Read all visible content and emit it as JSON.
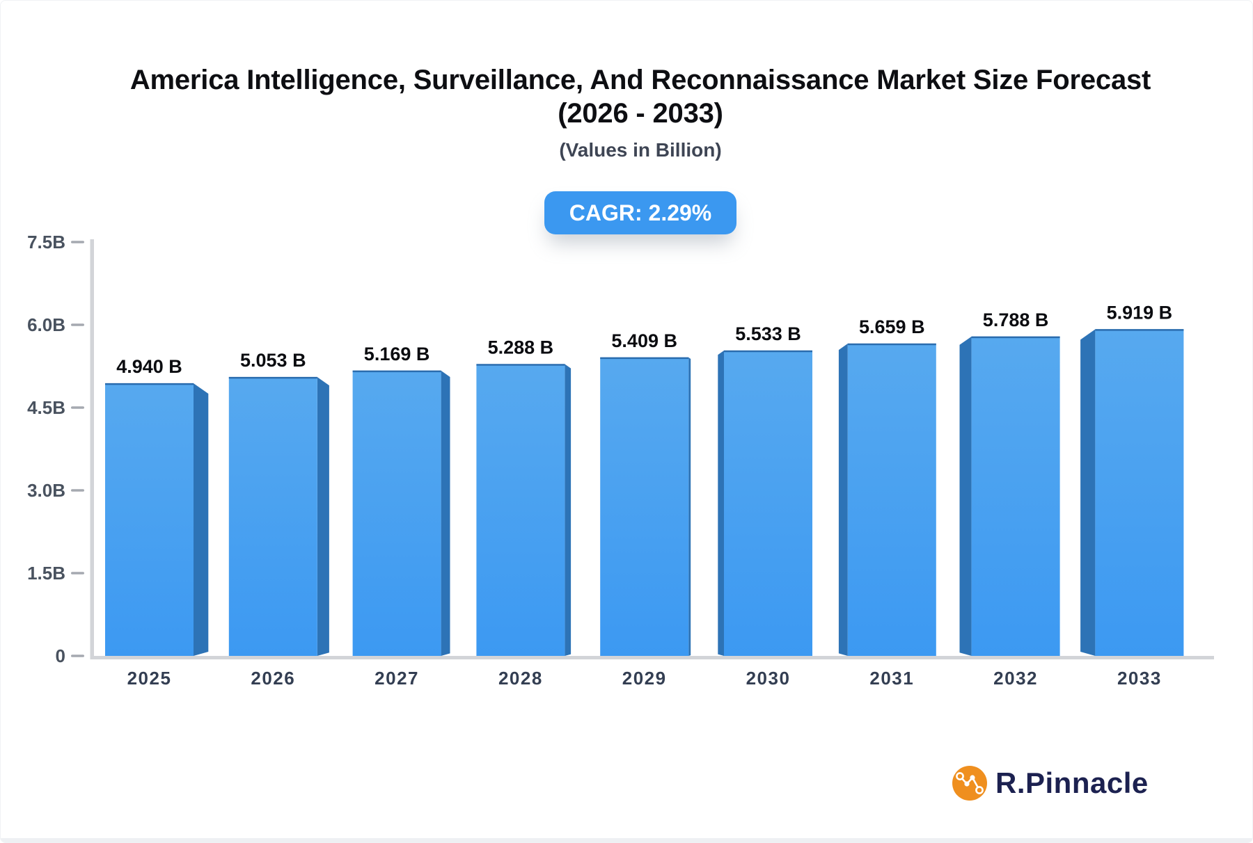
{
  "header": {
    "title_line1": "America Intelligence, Surveillance, And Reconnaissance Market Size Forecast",
    "title_line2": "(2026 - 2033)",
    "subtitle": "(Values in Billion)"
  },
  "badge": {
    "text": "CAGR: 2.29%",
    "bg": "#3b98f0",
    "fg": "#ffffff"
  },
  "chart_data": {
    "type": "bar",
    "title": "America Intelligence, Surveillance, And Reconnaissance Market Size Forecast (2026 - 2033)",
    "subtitle": "Values in Billion",
    "cagr_percent": 2.29,
    "categories": [
      "2025",
      "2026",
      "2027",
      "2028",
      "2029",
      "2030",
      "2031",
      "2032",
      "2033"
    ],
    "values": [
      4.94,
      5.053,
      5.169,
      5.288,
      5.409,
      5.533,
      5.659,
      5.788,
      5.919
    ],
    "value_labels": [
      "4.940 B",
      "5.053 B",
      "5.169 B",
      "5.288 B",
      "5.409 B",
      "5.533 B",
      "5.659 B",
      "5.788 B",
      "5.919 B"
    ],
    "unit": "B",
    "xlabel": "",
    "ylabel": "",
    "ylim": [
      0,
      7.5
    ],
    "yticks": [
      0,
      1.5,
      3.0,
      4.5,
      6.0,
      7.5
    ],
    "ytick_labels": [
      "0",
      "1.5B",
      "3.0B",
      "4.5B",
      "6.0B",
      "7.5B"
    ],
    "grid": false,
    "legend": false,
    "bar_style": "3d-perspective-center-vanishing",
    "colors": {
      "bar_top": "#57a9ef",
      "bar_bottom": "#3c99f2",
      "bar_side": "#2d73b6",
      "bar_edge": "#2a6cae",
      "axis_line": "#d2d4d8",
      "tick_dash": "#a5a9b0",
      "tick_label": "#49525f",
      "category_label": "#333e52",
      "value_label": "#0b0c10"
    }
  },
  "branding": {
    "name": "R.Pinnacle",
    "icon": "network-graph-icon",
    "icon_bg": "#ef8f1f",
    "text_color": "#1c2150"
  }
}
